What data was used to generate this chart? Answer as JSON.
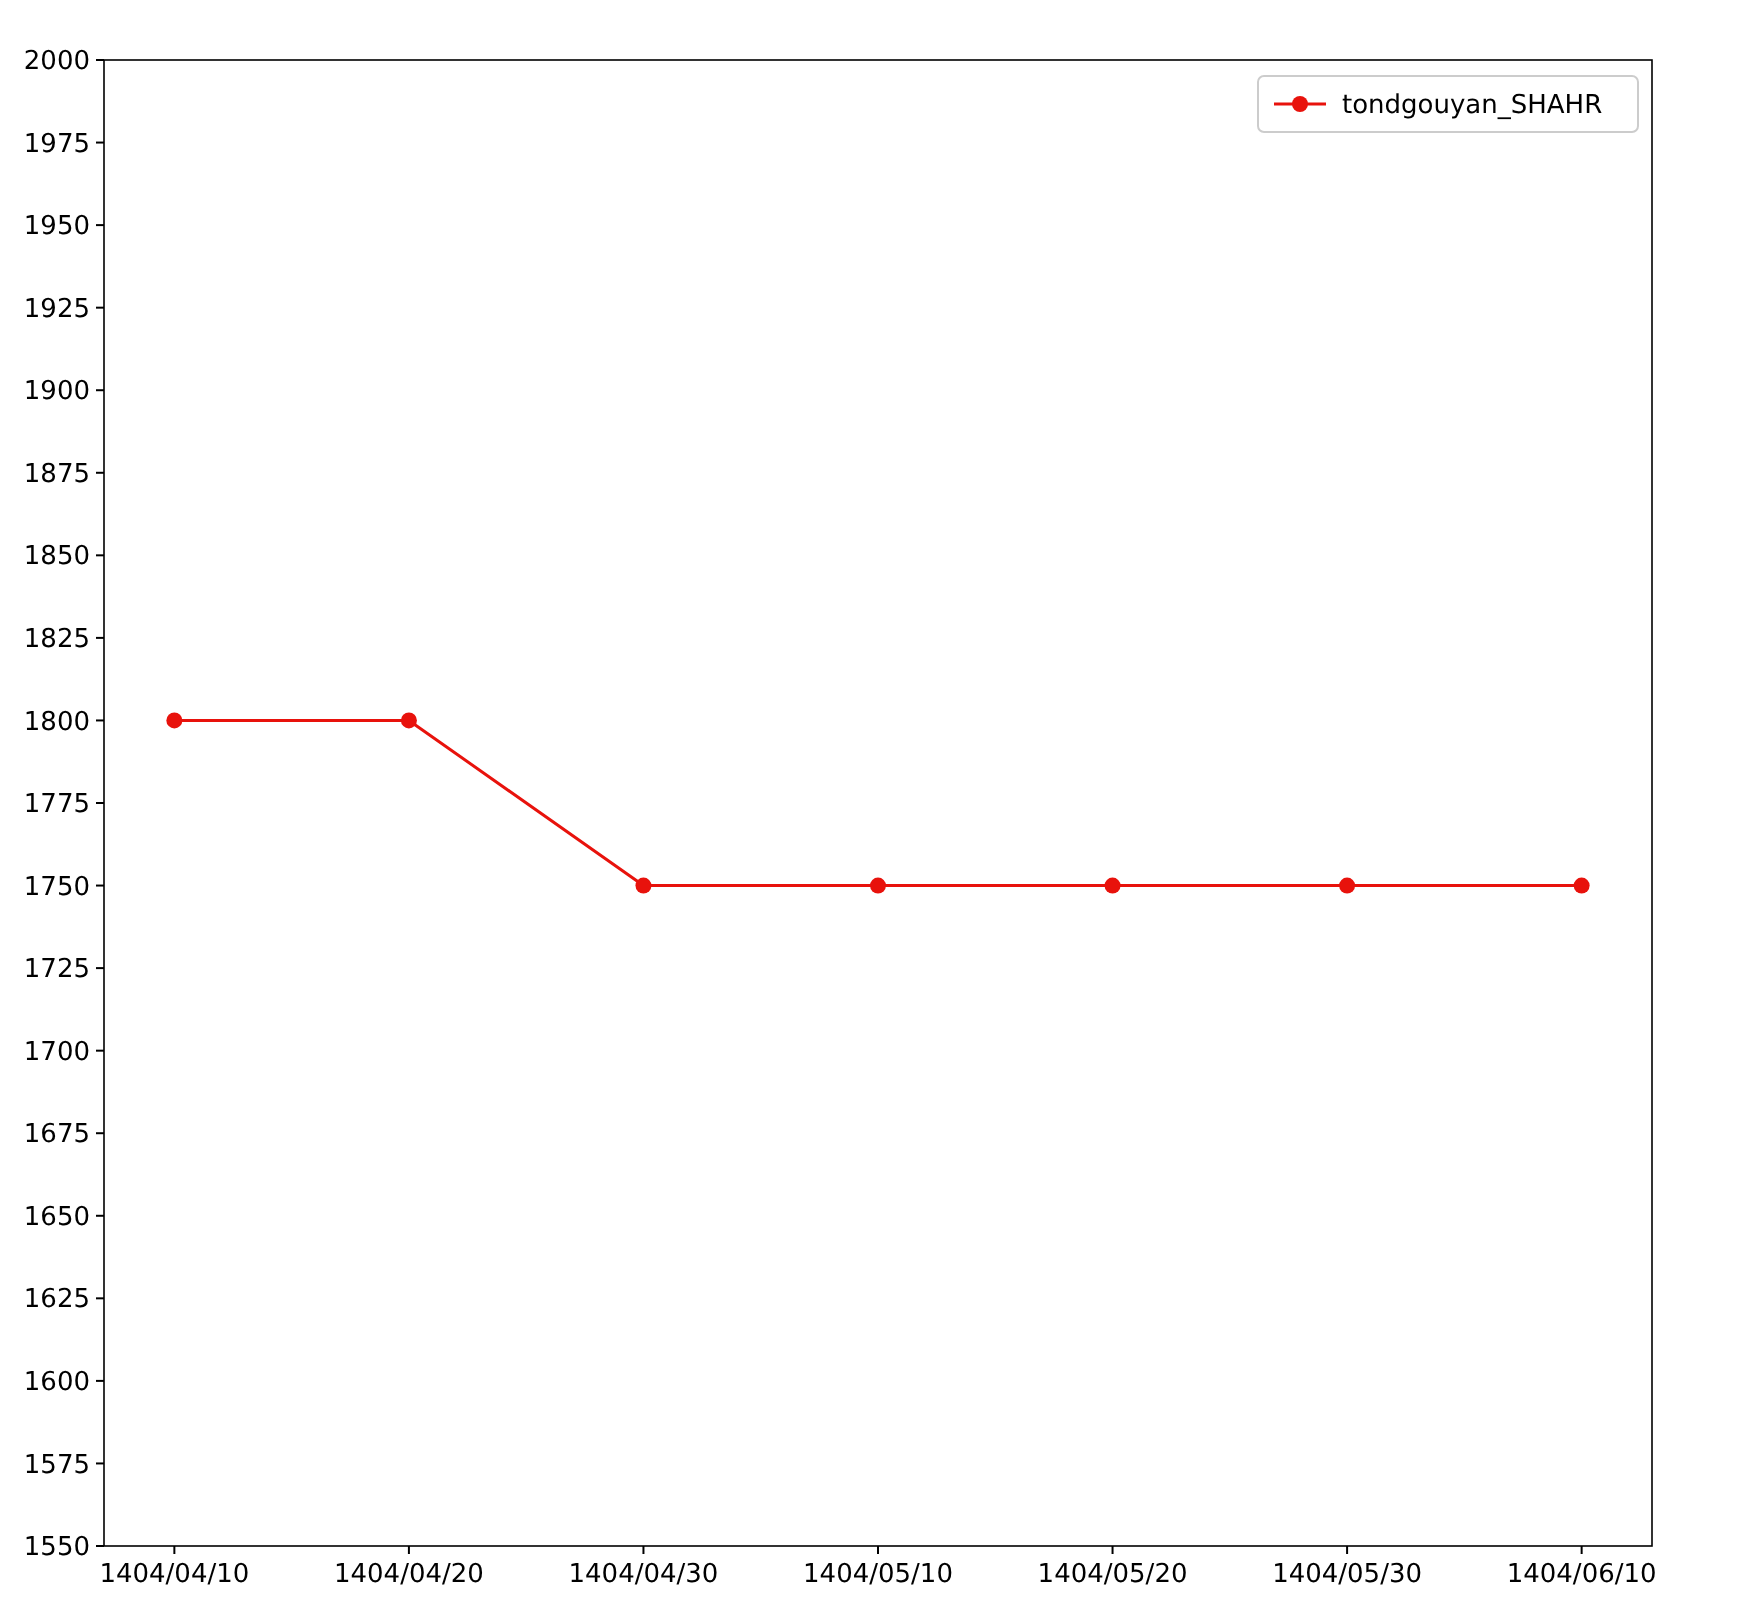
{
  "chart_data": {
    "type": "line",
    "categories": [
      "1404/04/10",
      "1404/04/20",
      "1404/04/30",
      "1404/05/10",
      "1404/05/20",
      "1404/05/30",
      "1404/06/10"
    ],
    "series": [
      {
        "name": "tondgouyan_SHAHR",
        "color": "#e8120c",
        "values": [
          1800,
          1800,
          1750,
          1750,
          1750,
          1750,
          1750
        ]
      }
    ],
    "ylim": [
      1550,
      2000
    ],
    "yticks": [
      1550,
      1575,
      1600,
      1625,
      1650,
      1675,
      1700,
      1725,
      1750,
      1775,
      1800,
      1825,
      1850,
      1875,
      1900,
      1925,
      1950,
      1975,
      2000
    ],
    "grid": false,
    "legend": "top right",
    "marker": "circle",
    "line_style": "solid"
  }
}
